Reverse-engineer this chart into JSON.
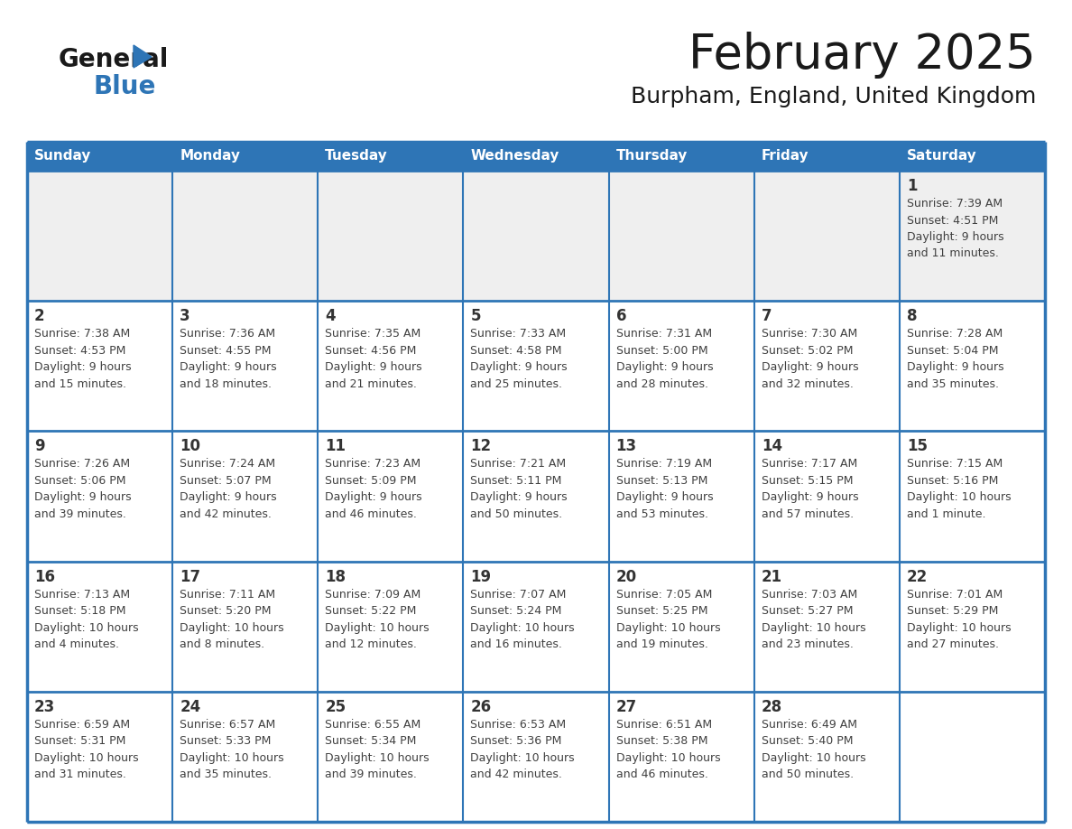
{
  "title": "February 2025",
  "subtitle": "Burpham, England, United Kingdom",
  "days_of_week": [
    "Sunday",
    "Monday",
    "Tuesday",
    "Wednesday",
    "Thursday",
    "Friday",
    "Saturday"
  ],
  "header_bg": "#2E75B6",
  "header_text": "#FFFFFF",
  "row_bg_light": "#FFFFFF",
  "row_bg_gray": "#EFEFEF",
  "cell_text_color": "#404040",
  "day_num_color": "#333333",
  "border_color": "#2E75B6",
  "title_color": "#1a1a1a",
  "subtitle_color": "#1a1a1a",
  "logo_black": "#1a1a1a",
  "logo_blue": "#2E75B6",
  "calendar": [
    [
      {
        "day": null,
        "info": null
      },
      {
        "day": null,
        "info": null
      },
      {
        "day": null,
        "info": null
      },
      {
        "day": null,
        "info": null
      },
      {
        "day": null,
        "info": null
      },
      {
        "day": null,
        "info": null
      },
      {
        "day": 1,
        "info": "Sunrise: 7:39 AM\nSunset: 4:51 PM\nDaylight: 9 hours\nand 11 minutes."
      }
    ],
    [
      {
        "day": 2,
        "info": "Sunrise: 7:38 AM\nSunset: 4:53 PM\nDaylight: 9 hours\nand 15 minutes."
      },
      {
        "day": 3,
        "info": "Sunrise: 7:36 AM\nSunset: 4:55 PM\nDaylight: 9 hours\nand 18 minutes."
      },
      {
        "day": 4,
        "info": "Sunrise: 7:35 AM\nSunset: 4:56 PM\nDaylight: 9 hours\nand 21 minutes."
      },
      {
        "day": 5,
        "info": "Sunrise: 7:33 AM\nSunset: 4:58 PM\nDaylight: 9 hours\nand 25 minutes."
      },
      {
        "day": 6,
        "info": "Sunrise: 7:31 AM\nSunset: 5:00 PM\nDaylight: 9 hours\nand 28 minutes."
      },
      {
        "day": 7,
        "info": "Sunrise: 7:30 AM\nSunset: 5:02 PM\nDaylight: 9 hours\nand 32 minutes."
      },
      {
        "day": 8,
        "info": "Sunrise: 7:28 AM\nSunset: 5:04 PM\nDaylight: 9 hours\nand 35 minutes."
      }
    ],
    [
      {
        "day": 9,
        "info": "Sunrise: 7:26 AM\nSunset: 5:06 PM\nDaylight: 9 hours\nand 39 minutes."
      },
      {
        "day": 10,
        "info": "Sunrise: 7:24 AM\nSunset: 5:07 PM\nDaylight: 9 hours\nand 42 minutes."
      },
      {
        "day": 11,
        "info": "Sunrise: 7:23 AM\nSunset: 5:09 PM\nDaylight: 9 hours\nand 46 minutes."
      },
      {
        "day": 12,
        "info": "Sunrise: 7:21 AM\nSunset: 5:11 PM\nDaylight: 9 hours\nand 50 minutes."
      },
      {
        "day": 13,
        "info": "Sunrise: 7:19 AM\nSunset: 5:13 PM\nDaylight: 9 hours\nand 53 minutes."
      },
      {
        "day": 14,
        "info": "Sunrise: 7:17 AM\nSunset: 5:15 PM\nDaylight: 9 hours\nand 57 minutes."
      },
      {
        "day": 15,
        "info": "Sunrise: 7:15 AM\nSunset: 5:16 PM\nDaylight: 10 hours\nand 1 minute."
      }
    ],
    [
      {
        "day": 16,
        "info": "Sunrise: 7:13 AM\nSunset: 5:18 PM\nDaylight: 10 hours\nand 4 minutes."
      },
      {
        "day": 17,
        "info": "Sunrise: 7:11 AM\nSunset: 5:20 PM\nDaylight: 10 hours\nand 8 minutes."
      },
      {
        "day": 18,
        "info": "Sunrise: 7:09 AM\nSunset: 5:22 PM\nDaylight: 10 hours\nand 12 minutes."
      },
      {
        "day": 19,
        "info": "Sunrise: 7:07 AM\nSunset: 5:24 PM\nDaylight: 10 hours\nand 16 minutes."
      },
      {
        "day": 20,
        "info": "Sunrise: 7:05 AM\nSunset: 5:25 PM\nDaylight: 10 hours\nand 19 minutes."
      },
      {
        "day": 21,
        "info": "Sunrise: 7:03 AM\nSunset: 5:27 PM\nDaylight: 10 hours\nand 23 minutes."
      },
      {
        "day": 22,
        "info": "Sunrise: 7:01 AM\nSunset: 5:29 PM\nDaylight: 10 hours\nand 27 minutes."
      }
    ],
    [
      {
        "day": 23,
        "info": "Sunrise: 6:59 AM\nSunset: 5:31 PM\nDaylight: 10 hours\nand 31 minutes."
      },
      {
        "day": 24,
        "info": "Sunrise: 6:57 AM\nSunset: 5:33 PM\nDaylight: 10 hours\nand 35 minutes."
      },
      {
        "day": 25,
        "info": "Sunrise: 6:55 AM\nSunset: 5:34 PM\nDaylight: 10 hours\nand 39 minutes."
      },
      {
        "day": 26,
        "info": "Sunrise: 6:53 AM\nSunset: 5:36 PM\nDaylight: 10 hours\nand 42 minutes."
      },
      {
        "day": 27,
        "info": "Sunrise: 6:51 AM\nSunset: 5:38 PM\nDaylight: 10 hours\nand 46 minutes."
      },
      {
        "day": 28,
        "info": "Sunrise: 6:49 AM\nSunset: 5:40 PM\nDaylight: 10 hours\nand 50 minutes."
      },
      {
        "day": null,
        "info": null
      }
    ]
  ]
}
